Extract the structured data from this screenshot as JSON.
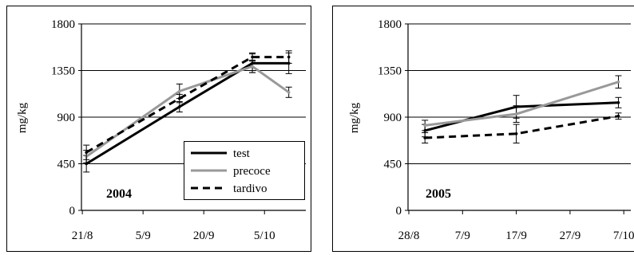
{
  "chart_data": [
    {
      "type": "line",
      "year_label": "2004",
      "ylabel": "mg/kg",
      "ylim": [
        0,
        1800
      ],
      "y_ticks": [
        "0",
        "450",
        "900",
        "1350",
        "1800"
      ],
      "x_tick_labels": [
        "21/8",
        "5/9",
        "20/9",
        "5/10"
      ],
      "legend": {
        "position": "bottom-right",
        "entries": [
          "test",
          "precoce",
          "tardivo"
        ]
      },
      "grid": "horizontal",
      "series": [
        {
          "name": "test",
          "style": "solid",
          "color": "#000000",
          "x": [
            "22/8",
            "14/9",
            "2/10",
            "11/10"
          ],
          "y": [
            450,
            1000,
            1420,
            1420
          ],
          "err": [
            80,
            50,
            90,
            100
          ]
        },
        {
          "name": "precoce",
          "style": "solid",
          "color": "#999999",
          "x": [
            "22/8",
            "14/9",
            "2/10",
            "11/10"
          ],
          "y": [
            520,
            1150,
            1390,
            1140
          ],
          "err": [
            60,
            70,
            60,
            50
          ]
        },
        {
          "name": "tardivo",
          "style": "dashed",
          "color": "#000000",
          "x": [
            "22/8",
            "14/9",
            "2/10",
            "11/10"
          ],
          "y": [
            560,
            1080,
            1480,
            1480
          ],
          "err": [
            70,
            40,
            40,
            60
          ]
        }
      ]
    },
    {
      "type": "line",
      "year_label": "2005",
      "ylabel": "mg/kg",
      "ylim": [
        0,
        1800
      ],
      "y_ticks": [
        "0",
        "450",
        "900",
        "1350",
        "1800"
      ],
      "x_tick_labels": [
        "28/8",
        "7/9",
        "17/9",
        "27/9",
        "7/10"
      ],
      "grid": "horizontal",
      "series": [
        {
          "name": "test",
          "style": "solid",
          "color": "#000000",
          "x": [
            "31/8",
            "17/9",
            "6/10"
          ],
          "y": [
            770,
            1000,
            1040
          ],
          "err": [
            60,
            110,
            50
          ]
        },
        {
          "name": "precoce",
          "style": "solid",
          "color": "#999999",
          "x": [
            "31/8",
            "17/9",
            "6/10"
          ],
          "y": [
            820,
            930,
            1240
          ],
          "err": [
            50,
            80,
            60
          ]
        },
        {
          "name": "tardivo",
          "style": "dashed",
          "color": "#000000",
          "x": [
            "31/8",
            "17/9",
            "6/10"
          ],
          "y": [
            700,
            740,
            910
          ],
          "err": [
            50,
            90,
            30
          ]
        }
      ]
    }
  ]
}
